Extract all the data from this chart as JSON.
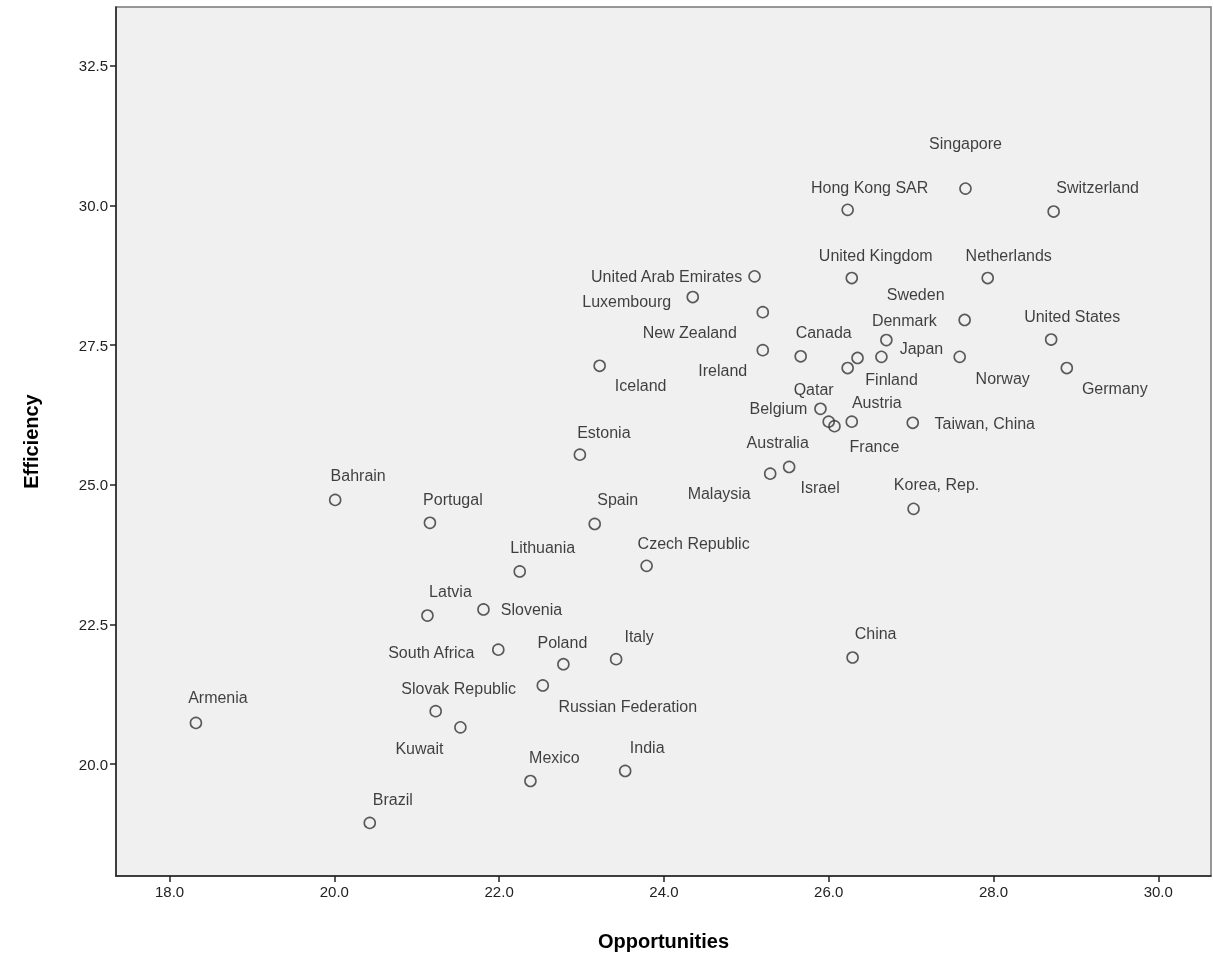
{
  "chart_data": {
    "type": "scatter",
    "xlabel": "Opportunities",
    "ylabel": "Efficiency",
    "xlim": [
      17.35,
      30.64
    ],
    "ylim": [
      18.0,
      33.55
    ],
    "xticks": [
      {
        "value": 18,
        "label": "18.0"
      },
      {
        "value": 20,
        "label": "20.0"
      },
      {
        "value": 22,
        "label": "22.0"
      },
      {
        "value": 24,
        "label": "24.0"
      },
      {
        "value": 26,
        "label": "26.0"
      },
      {
        "value": 28,
        "label": "28.0"
      },
      {
        "value": 30,
        "label": "30.0"
      }
    ],
    "yticks": [
      {
        "value": 20,
        "label": "20.0"
      },
      {
        "value": 22.5,
        "label": "22.5"
      },
      {
        "value": 25,
        "label": "25.0"
      },
      {
        "value": 27.5,
        "label": "27.5"
      },
      {
        "value": 30,
        "label": "30.0"
      },
      {
        "value": 32.5,
        "label": "32.5"
      }
    ],
    "grid": false,
    "marker": "circle",
    "series": [
      {
        "color": "#333333",
        "x": [
          27.66,
          26.23,
          28.73,
          25.1,
          26.28,
          27.93,
          24.35,
          25.2,
          27.65,
          26.7,
          28.7,
          25.2,
          25.66,
          26.35,
          26.23,
          26.64,
          27.59,
          25.9,
          26.0,
          26.07,
          26.28,
          25.52,
          25.29,
          27.02,
          28.89,
          23.22,
          22.98,
          27.03,
          20.01,
          21.16,
          23.16,
          22.25,
          23.79,
          21.13,
          21.81,
          21.99,
          22.78,
          23.42,
          26.29,
          22.53,
          21.23,
          21.53,
          18.32,
          22.38,
          23.53,
          20.43
        ],
        "values": [
          30.3,
          29.92,
          29.89,
          28.73,
          28.7,
          28.7,
          28.36,
          28.09,
          27.95,
          27.59,
          27.6,
          27.41,
          27.3,
          27.27,
          27.09,
          27.29,
          27.29,
          26.36,
          26.13,
          26.05,
          26.13,
          25.32,
          25.2,
          26.11,
          27.09,
          27.13,
          25.54,
          24.57,
          24.73,
          24.32,
          24.3,
          23.45,
          23.55,
          22.66,
          22.77,
          22.05,
          21.79,
          21.88,
          21.91,
          21.41,
          20.95,
          20.66,
          20.74,
          19.7,
          19.88,
          18.95
        ],
        "value_labels": [
          "Singapore",
          "Hong Kong SAR",
          "Switzerland",
          "United Arab Emirates",
          "United Kingdom",
          "Netherlands",
          "Luxembourg",
          "New Zealand",
          "Sweden",
          "Denmark",
          "United States",
          "Ireland",
          "Canada",
          "Finland",
          "Qatar",
          "Japan",
          "Norway",
          "Belgium",
          "Australia",
          "France",
          "Austria",
          "Israel",
          "Malaysia",
          "Taiwan, China",
          "Germany",
          "Iceland",
          "Estonia",
          "Korea, Rep.",
          "Bahrain",
          "Portugal",
          "Spain",
          "Lithuania",
          "Czech Republic",
          "Latvia",
          "Slovenia",
          "South Africa",
          "Poland",
          "Italy",
          "China",
          "Russian Federation",
          "Slovak Republic",
          "Kuwait",
          "Armenia",
          "Mexico",
          "India",
          "Brazil"
        ]
      }
    ]
  }
}
